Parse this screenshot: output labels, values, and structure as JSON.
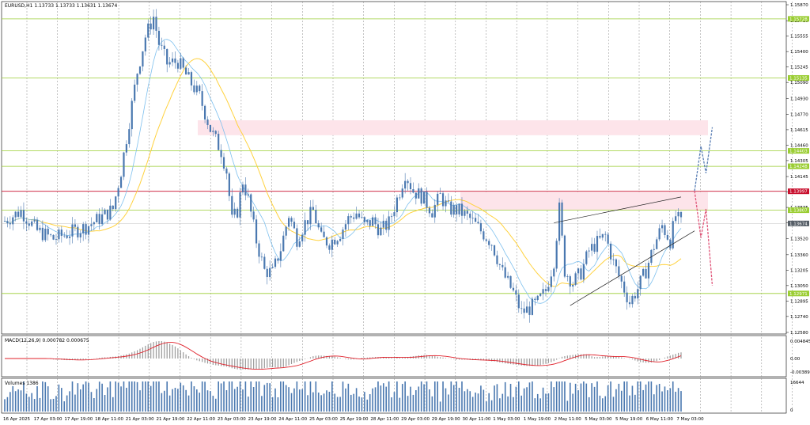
{
  "chart_data": {
    "type": "candlestick",
    "symbol_header": "EURUSD,H1  1.13733 1.13733 1.13631 1.13674",
    "price_axis": {
      "ylim": [
        1.1258,
        1.1587
      ],
      "ticks": [
        "1.15870",
        "1.15710",
        "1.15555",
        "1.15400",
        "1.15245",
        "1.15090",
        "1.14930",
        "1.14770",
        "1.14615",
        "1.14460",
        "1.14305",
        "1.14145",
        "1.13990",
        "1.13835",
        "1.13680",
        "1.13520",
        "1.13360",
        "1.13205",
        "1.13050",
        "1.12895",
        "1.12740",
        "1.12580"
      ]
    },
    "levels": [
      {
        "value": 1.15728,
        "label": "1.15728",
        "color": "#9acd32",
        "kind": "support"
      },
      {
        "value": 1.15135,
        "label": "1.15135",
        "color": "#9acd32",
        "kind": "support"
      },
      {
        "value": 1.14403,
        "label": "1.14403",
        "color": "#9acd32",
        "kind": "support"
      },
      {
        "value": 1.14248,
        "label": "1.14248",
        "color": "#9acd32",
        "kind": "support"
      },
      {
        "value": 1.13997,
        "label": "1.13997",
        "color": "#c8102e",
        "kind": "current"
      },
      {
        "value": 1.13807,
        "label": "1.13807",
        "color": "#9acd32",
        "kind": "support"
      },
      {
        "value": 1.13674,
        "label": "1.13674",
        "color": "#555d66",
        "kind": "bid"
      },
      {
        "value": 1.12971,
        "label": "1.12971",
        "color": "#9acd32",
        "kind": "support"
      }
    ],
    "zones": [
      {
        "from": 1.1456,
        "to": 1.1471
      },
      {
        "from": 1.1381,
        "to": 1.1399
      }
    ],
    "time_axis": {
      "labels": [
        "16 Apr 2025",
        "17 Apr 03:00",
        "17 Apr 19:00",
        "18 Apr 11:00",
        "21 Apr 03:00",
        "21 Apr 19:00",
        "22 Apr 11:00",
        "23 Apr 03:00",
        "23 Apr 19:00",
        "24 Apr 11:00",
        "25 Apr 03:00",
        "25 Apr 19:00",
        "28 Apr 11:00",
        "29 Apr 03:00",
        "29 Apr 19:00",
        "30 Apr 11:00",
        "1 May 03:00",
        "1 May 19:00",
        "2 May 11:00",
        "5 May 03:00",
        "5 May 19:00",
        "6 May 11:00",
        "7 May 03:00"
      ]
    },
    "anchors": [
      [
        0,
        1.137
      ],
      [
        6,
        1.138
      ],
      [
        12,
        1.136
      ],
      [
        18,
        1.1352
      ],
      [
        24,
        1.1358
      ],
      [
        30,
        1.1364
      ],
      [
        36,
        1.1374
      ],
      [
        40,
        1.1382
      ],
      [
        43,
        1.142
      ],
      [
        46,
        1.147
      ],
      [
        49,
        1.152
      ],
      [
        52,
        1.1555
      ],
      [
        55,
        1.1575
      ],
      [
        57,
        1.1548
      ],
      [
        60,
        1.1528
      ],
      [
        64,
        1.153
      ],
      [
        68,
        1.1512
      ],
      [
        72,
        1.1495
      ],
      [
        76,
        1.1462
      ],
      [
        80,
        1.144
      ],
      [
        82,
        1.142
      ],
      [
        84,
        1.137
      ],
      [
        86,
        1.138
      ],
      [
        88,
        1.141
      ],
      [
        90,
        1.1392
      ],
      [
        93,
        1.135
      ],
      [
        96,
        1.132
      ],
      [
        99,
        1.1318
      ],
      [
        102,
        1.1342
      ],
      [
        105,
        1.1376
      ],
      [
        108,
        1.1352
      ],
      [
        111,
        1.1368
      ],
      [
        114,
        1.138
      ],
      [
        117,
        1.1352
      ],
      [
        120,
        1.1348
      ],
      [
        124,
        1.1358
      ],
      [
        127,
        1.1372
      ],
      [
        130,
        1.1378
      ],
      [
        133,
        1.1365
      ],
      [
        136,
        1.137
      ],
      [
        139,
        1.136
      ],
      [
        142,
        1.1368
      ],
      [
        146,
        1.14
      ],
      [
        148,
        1.1418
      ],
      [
        151,
        1.14
      ],
      [
        154,
        1.1395
      ],
      [
        158,
        1.138
      ],
      [
        161,
        1.1395
      ],
      [
        164,
        1.1382
      ],
      [
        168,
        1.138
      ],
      [
        172,
        1.1372
      ],
      [
        176,
        1.136
      ],
      [
        180,
        1.1348
      ],
      [
        184,
        1.1318
      ],
      [
        188,
        1.1298
      ],
      [
        191,
        1.1278
      ],
      [
        194,
        1.1282
      ],
      [
        197,
        1.1288
      ],
      [
        200,
        1.13
      ],
      [
        203,
        1.133
      ],
      [
        205,
        1.1382
      ],
      [
        207,
        1.132
      ],
      [
        210,
        1.1308
      ],
      [
        213,
        1.1318
      ],
      [
        216,
        1.134
      ],
      [
        219,
        1.1348
      ],
      [
        222,
        1.1355
      ],
      [
        225,
        1.1328
      ],
      [
        228,
        1.1308
      ],
      [
        231,
        1.1288
      ],
      [
        234,
        1.1302
      ],
      [
        237,
        1.132
      ],
      [
        240,
        1.1345
      ],
      [
        243,
        1.1365
      ],
      [
        246,
        1.135
      ],
      [
        248,
        1.1375
      ],
      [
        250,
        1.1367
      ]
    ],
    "ma_slow_color": "#ffd23f",
    "ma_fast_color": "#7ec0ee",
    "candle_color": "#4a78b0",
    "forecast": {
      "bull_path": [
        [
          1.14,
          0
        ],
        [
          1.1445,
          5
        ],
        [
          1.1418,
          9
        ],
        [
          1.1464,
          14
        ]
      ],
      "bear_path": [
        [
          1.14,
          0
        ],
        [
          1.1353,
          5
        ],
        [
          1.1382,
          9
        ],
        [
          1.1305,
          14
        ]
      ],
      "bull_color": "#5b7fb5",
      "bear_color": "#e0567a"
    },
    "wedge": {
      "upper": [
        [
          203,
          1.1368
        ],
        [
          250,
          1.1394
        ]
      ],
      "lower": [
        [
          209,
          1.1285
        ],
        [
          255,
          1.136
        ]
      ]
    },
    "macd": {
      "label": "MACD(12,26,9) 0.000782 0.000675",
      "ticks": [
        "0.004845",
        "0.00",
        "-0.003899"
      ]
    },
    "volumes": {
      "label": "Volumes 1386",
      "ticks": [
        "16644",
        "0"
      ]
    }
  }
}
